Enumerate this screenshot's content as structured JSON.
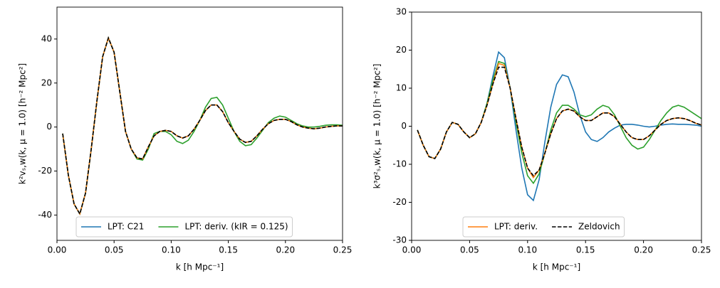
{
  "chart_data": [
    {
      "type": "line",
      "xlabel": "k [h Mpc⁻¹]",
      "ylabel": "k²vₛ,w(k, μ = 1.0) [h⁻² Mpc²]",
      "xlim": [
        0,
        0.25
      ],
      "ylim": [
        -51.5,
        54.5
      ],
      "xticks": [
        {
          "value": 0,
          "label": "0.00"
        },
        0.05,
        {
          "value": 0.1,
          "label": "0.10"
        },
        0.15,
        {
          "value": 0.2,
          "label": "0.20"
        },
        0.25
      ],
      "yticks": [
        -40,
        -20,
        0,
        20,
        40
      ],
      "x": [
        0.005,
        0.01,
        0.015,
        0.02,
        0.025,
        0.03,
        0.035,
        0.04,
        0.045,
        0.05,
        0.055,
        0.06,
        0.065,
        0.07,
        0.075,
        0.08,
        0.085,
        0.09,
        0.095,
        0.1,
        0.105,
        0.11,
        0.115,
        0.12,
        0.125,
        0.13,
        0.135,
        0.14,
        0.145,
        0.15,
        0.155,
        0.16,
        0.165,
        0.17,
        0.175,
        0.18,
        0.185,
        0.19,
        0.195,
        0.2,
        0.205,
        0.21,
        0.215,
        0.22,
        0.225,
        0.23,
        0.235,
        0.24,
        0.245,
        0.25
      ],
      "series": [
        {
          "name": "LPT: C21",
          "color": "#1f77b4",
          "values": [
            -3,
            -22,
            -35,
            -39.5,
            -30,
            -10,
            12,
            32,
            40.5,
            34,
            16,
            -2,
            -10,
            -14,
            -14.5,
            -9,
            -4,
            -2,
            -1.5,
            -2,
            -4,
            -5,
            -4,
            -1,
            3,
            7.5,
            10,
            10,
            7,
            2,
            -2,
            -5.5,
            -7,
            -6.5,
            -4,
            -1,
            1.5,
            3,
            3.5,
            3.5,
            2.5,
            1,
            0,
            -0.5,
            -0.8,
            -0.5,
            0,
            0.3,
            0.5,
            0.5
          ]
        },
        {
          "name": "LPT: deriv. (kIR = 0.125)",
          "color": "#2ca02c",
          "values": [
            -3,
            -22,
            -35,
            -39.5,
            -30,
            -10,
            12,
            32,
            40.5,
            34,
            16,
            -2,
            -10,
            -14.5,
            -15,
            -10,
            -3,
            -2,
            -2,
            -3.5,
            -6.5,
            -7.5,
            -6,
            -2,
            3,
            9,
            13,
            13.5,
            10,
            4,
            -2,
            -6.5,
            -8.5,
            -8,
            -5,
            -1.5,
            2,
            4,
            5,
            4.5,
            3,
            1.5,
            0.5,
            0,
            0,
            0.3,
            0.8,
            1,
            1,
            0.8
          ]
        },
        {
          "color": "#ff7f0e",
          "values": [
            -3,
            -22,
            -35,
            -39.5,
            -30,
            -10,
            12,
            32,
            40.5,
            34,
            16,
            -2,
            -10,
            -14,
            -14.5,
            -9,
            -4,
            -2,
            -1.5,
            -2,
            -4,
            -5,
            -4,
            -1,
            3,
            7.5,
            10,
            10,
            7,
            2,
            -2,
            -5.5,
            -7,
            -6.5,
            -4,
            -1,
            1.5,
            3,
            3.5,
            3.5,
            2.5,
            1,
            0,
            -0.5,
            -0.8,
            -0.5,
            0,
            0.3,
            0.5,
            0.5
          ]
        },
        {
          "color": "#000000",
          "dashed": true,
          "values": [
            -3,
            -22,
            -35,
            -39.5,
            -30,
            -10,
            12,
            32,
            40.5,
            34,
            16,
            -2,
            -10,
            -14,
            -14.5,
            -9,
            -4,
            -2,
            -1.5,
            -2,
            -4,
            -5,
            -4,
            -1,
            3,
            7.5,
            10,
            10,
            7,
            2,
            -2,
            -5.5,
            -7,
            -6.5,
            -4,
            -1,
            1.5,
            3,
            3.5,
            3.5,
            2.5,
            1,
            0,
            -0.5,
            -0.8,
            -0.5,
            0,
            0.3,
            0.5,
            0.5
          ]
        }
      ]
    },
    {
      "type": "line",
      "xlabel": "k [h Mpc⁻¹]",
      "ylabel": "k³σ²ₛ,w(k, μ = 1.0) [h⁻² Mpc²]",
      "xlim": [
        0,
        0.25
      ],
      "ylim": [
        -30,
        30
      ],
      "xticks": [
        {
          "value": 0,
          "label": "0.00"
        },
        0.05,
        {
          "value": 0.1,
          "label": "0.10"
        },
        0.15,
        {
          "value": 0.2,
          "label": "0.20"
        },
        0.25
      ],
      "yticks": [
        -30,
        -20,
        -10,
        0,
        10,
        20,
        30
      ],
      "x": [
        0.005,
        0.01,
        0.015,
        0.02,
        0.025,
        0.03,
        0.035,
        0.04,
        0.045,
        0.05,
        0.055,
        0.06,
        0.065,
        0.07,
        0.075,
        0.08,
        0.085,
        0.09,
        0.095,
        0.1,
        0.105,
        0.11,
        0.115,
        0.12,
        0.125,
        0.13,
        0.135,
        0.14,
        0.145,
        0.15,
        0.155,
        0.16,
        0.165,
        0.17,
        0.175,
        0.18,
        0.185,
        0.19,
        0.195,
        0.2,
        0.205,
        0.21,
        0.215,
        0.22,
        0.225,
        0.23,
        0.235,
        0.24,
        0.245,
        0.25
      ],
      "series": [
        {
          "color": "#1f77b4",
          "values": [
            -1,
            -5,
            -8,
            -8.5,
            -6,
            -1.5,
            1,
            0.5,
            -1.5,
            -3,
            -2,
            1,
            6,
            13,
            19.5,
            18,
            10,
            -1,
            -11,
            -18,
            -19.5,
            -14,
            -4,
            5,
            11,
            13.5,
            13,
            9,
            3,
            -1.5,
            -3.5,
            -4,
            -3,
            -1.5,
            -0.5,
            0.3,
            0.5,
            0.5,
            0.3,
            0,
            -0.2,
            0,
            0.3,
            0.5,
            0.6,
            0.5,
            0.5,
            0.4,
            0.3,
            0
          ]
        },
        {
          "color": "#2ca02c",
          "values": [
            -1,
            -5,
            -8,
            -8.5,
            -6,
            -1.5,
            1,
            0.5,
            -1.5,
            -3,
            -2,
            1,
            6,
            12,
            17,
            16.5,
            10,
            1,
            -7,
            -13,
            -15,
            -12.5,
            -7,
            -1,
            3.5,
            5.5,
            5.5,
            4.5,
            3,
            2.5,
            3,
            4.5,
            5.5,
            5,
            3,
            0,
            -3,
            -5,
            -6,
            -5.5,
            -3.5,
            -1,
            1.5,
            3.5,
            5,
            5.5,
            5,
            4,
            3,
            2
          ]
        },
        {
          "name": "LPT: deriv.",
          "color": "#ff7f0e",
          "values": [
            -1,
            -5,
            -8,
            -8.5,
            -6,
            -1.5,
            1,
            0.5,
            -1.5,
            -3,
            -2,
            1,
            5.5,
            11,
            16.5,
            16,
            10,
            2,
            -5.5,
            -11,
            -13.5,
            -11.5,
            -7,
            -2,
            2,
            4,
            4.5,
            4,
            2.5,
            1.5,
            1.5,
            2.5,
            3.5,
            3.5,
            2.5,
            0.5,
            -1.5,
            -3,
            -3.5,
            -3.5,
            -2.5,
            -1,
            0.5,
            1.5,
            2,
            2.2,
            2,
            1.5,
            0.8,
            0.3
          ]
        },
        {
          "name": "Zeldovich",
          "color": "#000000",
          "dashed": true,
          "values": [
            -1,
            -5,
            -8,
            -8.5,
            -6,
            -1.5,
            1,
            0.5,
            -1.5,
            -3,
            -2,
            1,
            5.5,
            11,
            15.5,
            15.5,
            10,
            2,
            -5.5,
            -11,
            -13,
            -11.5,
            -7,
            -2,
            2,
            4,
            4.5,
            4,
            2.5,
            1.5,
            1.5,
            2.5,
            3.5,
            3.5,
            2.5,
            0.5,
            -1.5,
            -3,
            -3.5,
            -3.5,
            -2.5,
            -1,
            0.5,
            1.5,
            2,
            2.2,
            2,
            1.5,
            0.8,
            0.3
          ]
        }
      ]
    }
  ]
}
